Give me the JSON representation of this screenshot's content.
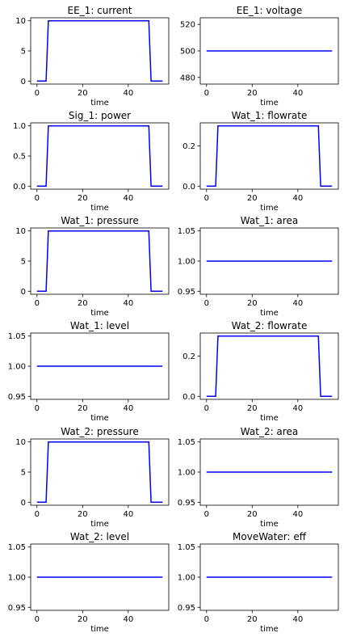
{
  "chart_data": [
    {
      "type": "line",
      "title": "EE_1: current",
      "xlabel": "time",
      "ylabel": "",
      "xlim": [
        -2.75,
        57.75
      ],
      "ylim": [
        -0.5,
        10.5
      ],
      "xticks": [
        0,
        20,
        40
      ],
      "yticks": [
        0,
        5,
        10
      ],
      "ytick_labels": [
        "0",
        "5",
        "10"
      ],
      "line_color": "#0000ff",
      "series": [
        {
          "x": [
            0,
            4,
            5,
            49,
            50,
            55
          ],
          "y": [
            0,
            0,
            10,
            10,
            0,
            0
          ]
        }
      ]
    },
    {
      "type": "line",
      "title": "EE_1: voltage",
      "xlabel": "time",
      "ylabel": "",
      "xlim": [
        -2.75,
        57.75
      ],
      "ylim": [
        475,
        525
      ],
      "xticks": [
        0,
        20,
        40
      ],
      "yticks": [
        480,
        500,
        520
      ],
      "ytick_labels": [
        "480",
        "500",
        "520"
      ],
      "line_color": "#0000ff",
      "series": [
        {
          "x": [
            0,
            55
          ],
          "y": [
            500,
            500
          ]
        }
      ]
    },
    {
      "type": "line",
      "title": "Sig_1: power",
      "xlabel": "time",
      "ylabel": "",
      "xlim": [
        -2.75,
        57.75
      ],
      "ylim": [
        -0.05,
        1.05
      ],
      "xticks": [
        0,
        20,
        40
      ],
      "yticks": [
        0,
        0.5,
        1
      ],
      "ytick_labels": [
        "0.0",
        "0.5",
        "1.0"
      ],
      "line_color": "#0000ff",
      "series": [
        {
          "x": [
            0,
            4,
            5,
            49,
            50,
            55
          ],
          "y": [
            0,
            0,
            1,
            1,
            0,
            0
          ]
        }
      ]
    },
    {
      "type": "line",
      "title": "Wat_1: flowrate",
      "xlabel": "time",
      "ylabel": "",
      "xlim": [
        -2.75,
        57.75
      ],
      "ylim": [
        -0.015,
        0.315
      ],
      "xticks": [
        0,
        20,
        40
      ],
      "yticks": [
        0,
        0.2
      ],
      "ytick_labels": [
        "0.0",
        "0.2"
      ],
      "line_color": "#0000ff",
      "series": [
        {
          "x": [
            0,
            4,
            5,
            49,
            50,
            55
          ],
          "y": [
            0,
            0,
            0.3,
            0.3,
            0,
            0
          ]
        }
      ]
    },
    {
      "type": "line",
      "title": "Wat_1: pressure",
      "xlabel": "time",
      "ylabel": "",
      "xlim": [
        -2.75,
        57.75
      ],
      "ylim": [
        -0.5,
        10.5
      ],
      "xticks": [
        0,
        20,
        40
      ],
      "yticks": [
        0,
        5,
        10
      ],
      "ytick_labels": [
        "0",
        "5",
        "10"
      ],
      "line_color": "#0000ff",
      "series": [
        {
          "x": [
            0,
            4,
            5,
            49,
            50,
            55
          ],
          "y": [
            0,
            0,
            10,
            10,
            0,
            0
          ]
        }
      ]
    },
    {
      "type": "line",
      "title": "Wat_1: area",
      "xlabel": "time",
      "ylabel": "",
      "xlim": [
        -2.75,
        57.75
      ],
      "ylim": [
        0.945,
        1.055
      ],
      "xticks": [
        0,
        20,
        40
      ],
      "yticks": [
        0.95,
        1.0,
        1.05
      ],
      "ytick_labels": [
        "0.95",
        "1.00",
        "1.05"
      ],
      "line_color": "#0000ff",
      "series": [
        {
          "x": [
            0,
            55
          ],
          "y": [
            1,
            1
          ]
        }
      ]
    },
    {
      "type": "line",
      "title": "Wat_1: level",
      "xlabel": "time",
      "ylabel": "",
      "xlim": [
        -2.75,
        57.75
      ],
      "ylim": [
        0.945,
        1.055
      ],
      "xticks": [
        0,
        20,
        40
      ],
      "yticks": [
        0.95,
        1.0,
        1.05
      ],
      "ytick_labels": [
        "0.95",
        "1.00",
        "1.05"
      ],
      "line_color": "#0000ff",
      "series": [
        {
          "x": [
            0,
            55
          ],
          "y": [
            1,
            1
          ]
        }
      ]
    },
    {
      "type": "line",
      "title": "Wat_2: flowrate",
      "xlabel": "time",
      "ylabel": "",
      "xlim": [
        -2.75,
        57.75
      ],
      "ylim": [
        -0.015,
        0.315
      ],
      "xticks": [
        0,
        20,
        40
      ],
      "yticks": [
        0,
        0.2
      ],
      "ytick_labels": [
        "0.0",
        "0.2"
      ],
      "line_color": "#0000ff",
      "series": [
        {
          "x": [
            0,
            4,
            5,
            49,
            50,
            55
          ],
          "y": [
            0,
            0,
            0.3,
            0.3,
            0,
            0
          ]
        }
      ]
    },
    {
      "type": "line",
      "title": "Wat_2: pressure",
      "xlabel": "time",
      "ylabel": "",
      "xlim": [
        -2.75,
        57.75
      ],
      "ylim": [
        -0.5,
        10.5
      ],
      "xticks": [
        0,
        20,
        40
      ],
      "yticks": [
        0,
        5,
        10
      ],
      "ytick_labels": [
        "0",
        "5",
        "10"
      ],
      "line_color": "#0000ff",
      "series": [
        {
          "x": [
            0,
            4,
            5,
            49,
            50,
            55
          ],
          "y": [
            0,
            0,
            10,
            10,
            0,
            0
          ]
        }
      ]
    },
    {
      "type": "line",
      "title": "Wat_2: area",
      "xlabel": "time",
      "ylabel": "",
      "xlim": [
        -2.75,
        57.75
      ],
      "ylim": [
        0.945,
        1.055
      ],
      "xticks": [
        0,
        20,
        40
      ],
      "yticks": [
        0.95,
        1.0,
        1.05
      ],
      "ytick_labels": [
        "0.95",
        "1.00",
        "1.05"
      ],
      "line_color": "#0000ff",
      "series": [
        {
          "x": [
            0,
            55
          ],
          "y": [
            1,
            1
          ]
        }
      ]
    },
    {
      "type": "line",
      "title": "Wat_2: level",
      "xlabel": "time",
      "ylabel": "",
      "xlim": [
        -2.75,
        57.75
      ],
      "ylim": [
        0.945,
        1.055
      ],
      "xticks": [
        0,
        20,
        40
      ],
      "yticks": [
        0.95,
        1.0,
        1.05
      ],
      "ytick_labels": [
        "0.95",
        "1.00",
        "1.05"
      ],
      "line_color": "#0000ff",
      "series": [
        {
          "x": [
            0,
            55
          ],
          "y": [
            1,
            1
          ]
        }
      ]
    },
    {
      "type": "line",
      "title": "MoveWater: eff",
      "xlabel": "time",
      "ylabel": "",
      "xlim": [
        -2.75,
        57.75
      ],
      "ylim": [
        0.945,
        1.055
      ],
      "xticks": [
        0,
        20,
        40
      ],
      "yticks": [
        0.95,
        1.0,
        1.05
      ],
      "ytick_labels": [
        "0.95",
        "1.00",
        "1.05"
      ],
      "line_color": "#0000ff",
      "series": [
        {
          "x": [
            0,
            55
          ],
          "y": [
            1,
            1
          ]
        }
      ]
    }
  ]
}
